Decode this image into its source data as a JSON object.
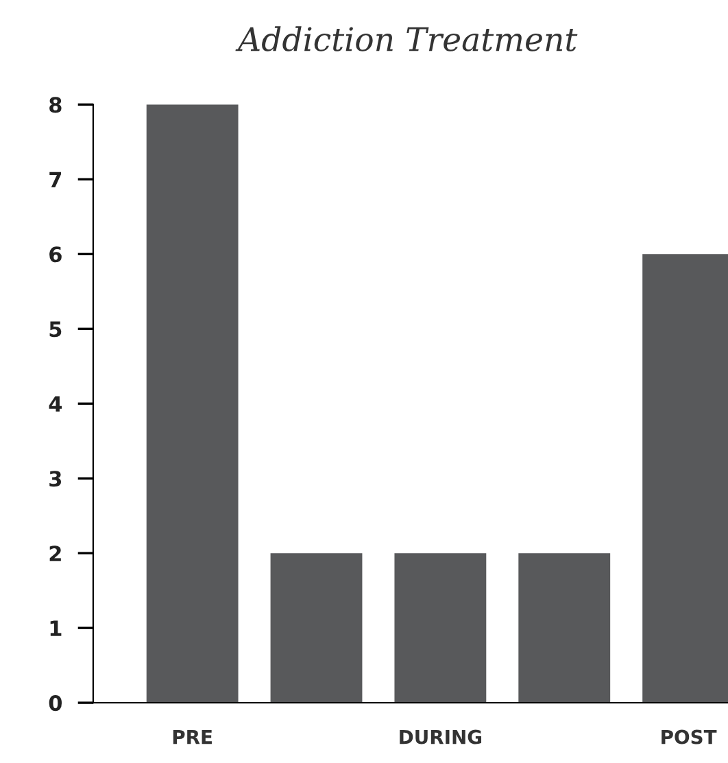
{
  "chart_data": {
    "type": "bar",
    "title": "Addiction Treatment",
    "categories": [
      "PRE",
      null,
      "DURING",
      null,
      "POST"
    ],
    "values": [
      8,
      2,
      2,
      2,
      6
    ],
    "color": "#58595b",
    "ylim": [
      0,
      8
    ],
    "yticks": [
      0,
      1,
      2,
      3,
      4,
      5,
      6,
      7,
      8
    ],
    "grid": false
  }
}
